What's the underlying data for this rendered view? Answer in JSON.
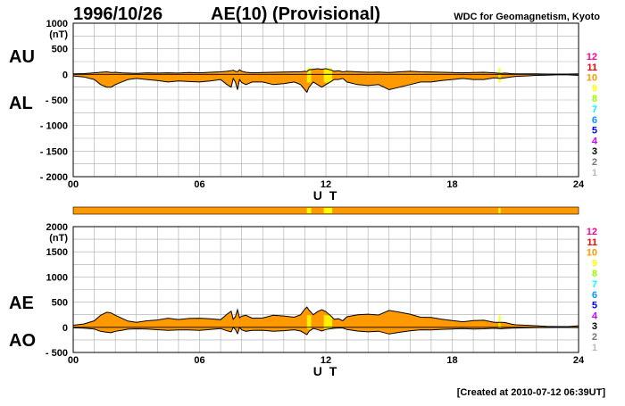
{
  "header": {
    "date": "1996/10/26",
    "title": "AE(10) (Provisional)",
    "source": "WDC for Geomagnetism, Kyoto"
  },
  "footer": {
    "created": "[Created at 2010-07-12 06:39UT]"
  },
  "colors": {
    "fill": "#ff9900",
    "highlight": "#ffff00",
    "line": "#000000",
    "grid": "#aaaaaa"
  },
  "station_legend": [
    {
      "label": "12",
      "color": "#ff0099"
    },
    {
      "label": "11",
      "color": "#ff0000"
    },
    {
      "label": "10",
      "color": "#ff9900"
    },
    {
      "label": "9",
      "color": "#ffff00"
    },
    {
      "label": "8",
      "color": "#99ff00"
    },
    {
      "label": "7",
      "color": "#00ffff"
    },
    {
      "label": "6",
      "color": "#0099ff"
    },
    {
      "label": "5",
      "color": "#0000ff"
    },
    {
      "label": "4",
      "color": "#cc00ff"
    },
    {
      "label": "3",
      "color": "#000000"
    },
    {
      "label": "2",
      "color": "#777777"
    },
    {
      "label": "1",
      "color": "#bbbbbb"
    }
  ],
  "chart_data": [
    {
      "type": "area",
      "id": "au-al",
      "labels": {
        "upper": "AU",
        "lower": "AL"
      },
      "xlabel": "U T",
      "unit": "(nT)",
      "xlim": [
        0,
        24
      ],
      "xticks": [
        "00",
        "06",
        "12",
        "18",
        "24"
      ],
      "ylim": [
        -2000,
        1000
      ],
      "yticks": [
        "1000",
        "500",
        "0",
        "- 500",
        "- 1000",
        "- 1500",
        "- 2000"
      ],
      "x": [
        0,
        0.5,
        1,
        1.3,
        1.6,
        1.8,
        2,
        2.3,
        2.6,
        3,
        3.5,
        4,
        4.5,
        5,
        5.5,
        6,
        6.5,
        7,
        7.3,
        7.5,
        7.6,
        7.7,
        7.8,
        7.9,
        8,
        8.2,
        8.5,
        9,
        9.5,
        10,
        10.5,
        10.8,
        11,
        11.1,
        11.2,
        11.4,
        11.6,
        11.8,
        12,
        12.2,
        12.4,
        12.6,
        12.8,
        13,
        13.5,
        14,
        14.5,
        15,
        15.5,
        16,
        16.5,
        17,
        17.5,
        18,
        18.5,
        19,
        19.5,
        20,
        20.3,
        20.5,
        20.8,
        21,
        21.5,
        22,
        22.5,
        23,
        23.5,
        24
      ],
      "series": [
        {
          "name": "AU",
          "values": [
            10,
            15,
            30,
            40,
            50,
            35,
            40,
            30,
            25,
            20,
            30,
            25,
            30,
            25,
            35,
            30,
            40,
            50,
            60,
            70,
            80,
            60,
            50,
            90,
            60,
            40,
            30,
            35,
            40,
            45,
            50,
            50,
            60,
            55,
            90,
            100,
            110,
            100,
            110,
            90,
            60,
            70,
            50,
            60,
            50,
            40,
            45,
            35,
            50,
            60,
            50,
            45,
            40,
            35,
            30,
            35,
            40,
            30,
            20,
            25,
            15,
            10,
            10,
            10,
            5,
            5,
            5,
            10
          ]
        },
        {
          "name": "AL",
          "values": [
            -30,
            -50,
            -100,
            -200,
            -250,
            -250,
            -200,
            -150,
            -100,
            -80,
            -100,
            -120,
            -150,
            -130,
            -140,
            -150,
            -130,
            -100,
            -200,
            -250,
            -80,
            -150,
            -300,
            -100,
            -160,
            -200,
            -150,
            -150,
            -200,
            -180,
            -150,
            -200,
            -300,
            -350,
            -250,
            -150,
            -200,
            -250,
            -200,
            -150,
            -100,
            -100,
            -80,
            -150,
            -200,
            -220,
            -200,
            -300,
            -250,
            -200,
            -150,
            -150,
            -120,
            -100,
            -80,
            -100,
            -100,
            -70,
            -80,
            -70,
            -50,
            -40,
            -30,
            -20,
            -15,
            -10,
            -10,
            -20
          ]
        }
      ],
      "highlights": [
        [
          11.1,
          11.3
        ],
        [
          11.9,
          12.3
        ],
        [
          20.2,
          20.3
        ]
      ]
    },
    {
      "type": "area",
      "id": "ae-ao",
      "labels": {
        "upper": "AE",
        "lower": "AO"
      },
      "xlabel": "U T",
      "unit": "(nT)",
      "xlim": [
        0,
        24
      ],
      "xticks": [
        "00",
        "06",
        "12",
        "18",
        "24"
      ],
      "ylim": [
        -500,
        2000
      ],
      "yticks": [
        "2000",
        "1500",
        "1000",
        "500",
        "0",
        "- 500"
      ],
      "x": [
        0,
        0.5,
        1,
        1.3,
        1.6,
        1.8,
        2,
        2.3,
        2.6,
        3,
        3.5,
        4,
        4.5,
        5,
        5.5,
        6,
        6.5,
        7,
        7.3,
        7.5,
        7.6,
        7.7,
        7.8,
        7.9,
        8,
        8.2,
        8.5,
        9,
        9.5,
        10,
        10.5,
        10.8,
        11,
        11.1,
        11.2,
        11.4,
        11.6,
        11.8,
        12,
        12.2,
        12.4,
        12.6,
        12.8,
        13,
        13.5,
        14,
        14.5,
        15,
        15.5,
        16,
        16.5,
        17,
        17.5,
        18,
        18.5,
        19,
        19.5,
        20,
        20.3,
        20.5,
        20.8,
        21,
        21.5,
        22,
        22.5,
        23,
        23.5,
        24
      ],
      "series": [
        {
          "name": "AE",
          "values": [
            40,
            65,
            130,
            240,
            300,
            285,
            240,
            180,
            125,
            100,
            130,
            145,
            180,
            155,
            175,
            180,
            170,
            150,
            260,
            320,
            160,
            210,
            350,
            190,
            220,
            240,
            180,
            185,
            240,
            225,
            200,
            250,
            360,
            405,
            340,
            250,
            310,
            350,
            310,
            240,
            160,
            170,
            130,
            210,
            250,
            260,
            245,
            335,
            300,
            260,
            200,
            195,
            160,
            135,
            110,
            135,
            140,
            100,
            100,
            95,
            65,
            50,
            40,
            30,
            20,
            15,
            15,
            30
          ]
        },
        {
          "name": "AO",
          "values": [
            -10,
            -18,
            -35,
            -80,
            -100,
            -108,
            -80,
            -60,
            -38,
            -30,
            -35,
            -48,
            -60,
            -53,
            -53,
            -60,
            -45,
            -25,
            -70,
            -90,
            0,
            -45,
            -125,
            -5,
            -50,
            -80,
            -60,
            -58,
            -80,
            -68,
            -50,
            -75,
            -120,
            -148,
            -80,
            -25,
            -45,
            -75,
            -45,
            -30,
            -20,
            -15,
            -15,
            -45,
            -75,
            -90,
            -78,
            -133,
            -100,
            -70,
            -50,
            -53,
            -40,
            -33,
            -25,
            -33,
            -30,
            -20,
            -30,
            -23,
            -18,
            -15,
            -10,
            -5,
            -5,
            -3,
            -3,
            -5
          ]
        }
      ],
      "highlights": [
        [
          11.1,
          11.3
        ],
        [
          11.9,
          12.3
        ],
        [
          20.2,
          20.3
        ]
      ]
    }
  ],
  "coverage_bar": {
    "segments": [
      [
        11.1,
        11.3
      ],
      [
        11.9,
        12.3
      ],
      [
        20.2,
        20.3
      ]
    ]
  }
}
